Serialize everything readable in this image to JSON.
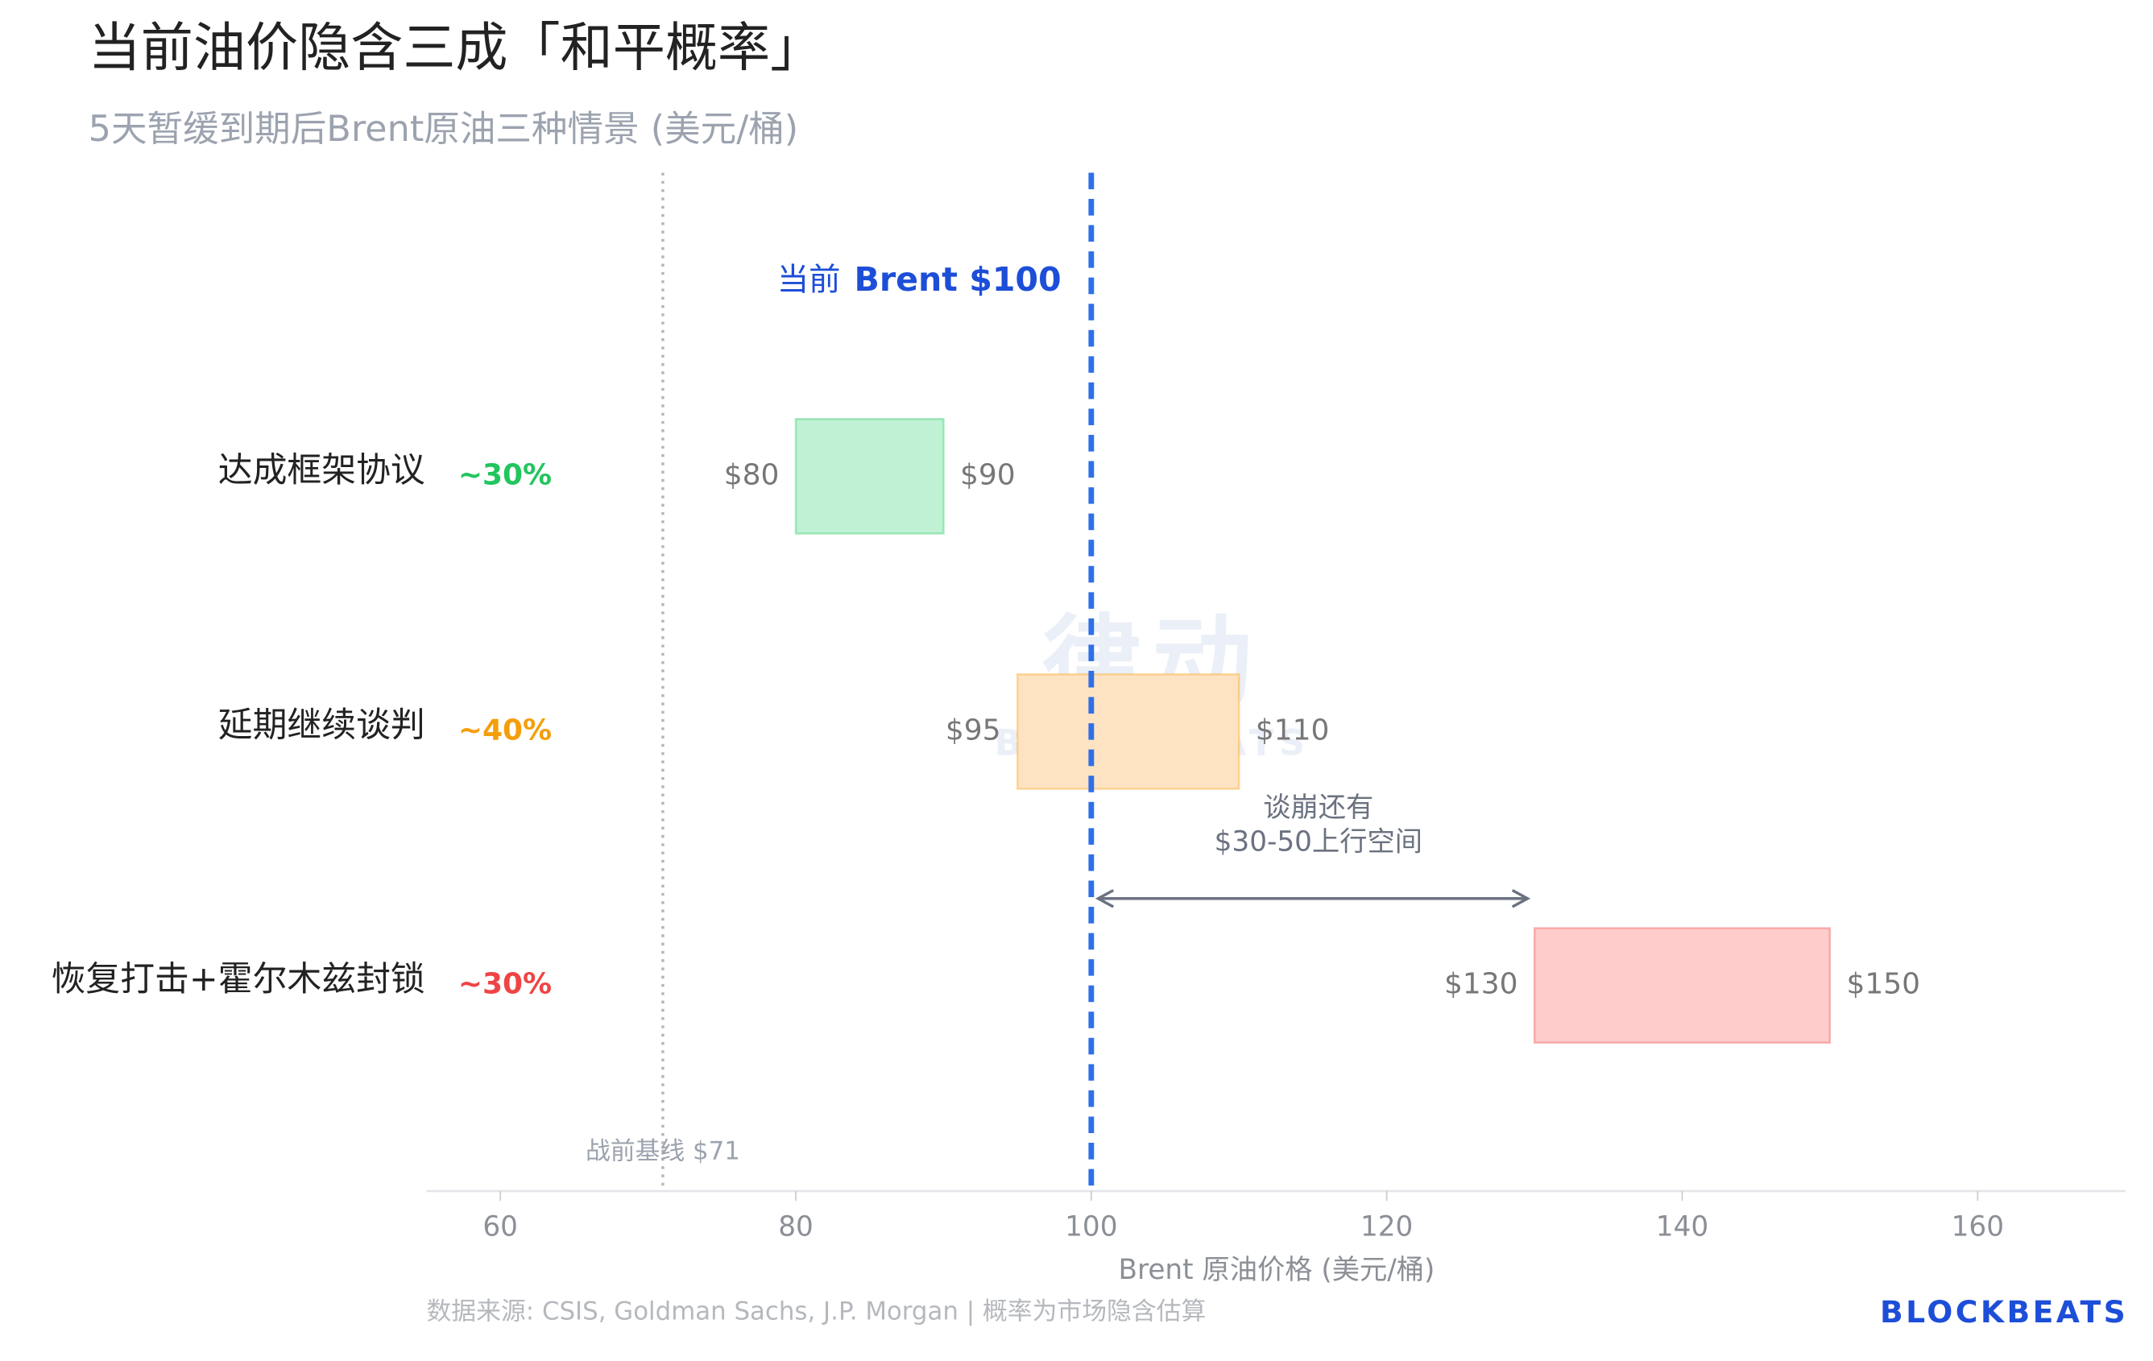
{
  "chart_data": {
    "type": "range_bar",
    "title": "当前油价隐含三成「和平概率」",
    "subtitle": "5天暂缓到期后Brent原油三种情景 (美元/桶)",
    "x_label": "Brent 原油价格 (美元/桶)",
    "categories": [
      "达成框架协议",
      "延期继续谈判",
      "恢复打击+霍尔木兹封锁"
    ],
    "probabilities": [
      "~30%",
      "~40%",
      "~30%"
    ],
    "probability_colors": [
      "#22c55e",
      "#f59e0b",
      "#ef4444"
    ],
    "low": [
      80,
      95,
      130
    ],
    "high": [
      90,
      110,
      150
    ],
    "low_labels": [
      "$80",
      "$95",
      "$130"
    ],
    "high_labels": [
      "$90",
      "$110",
      "$150"
    ],
    "colors": [
      "#c1f1d4",
      "#fde3c2",
      "#ffcccc"
    ],
    "xlim": [
      55,
      170
    ],
    "xticks": [
      60,
      80,
      100,
      120,
      140,
      160
    ],
    "current": {
      "value": 100,
      "prefix": "当前",
      "label": "Brent $100",
      "color": "#2f6fe8"
    },
    "baseline": {
      "value": 71,
      "label": "战前基线 $71"
    },
    "annotation": {
      "lines": [
        "谈崩还有",
        "$30-50上行空间"
      ],
      "x_start": 100,
      "x_end": 130
    },
    "watermark": [
      "律动",
      "BLOCKBEATS"
    ],
    "source": "数据来源: CSIS, Goldman Sachs, J.P. Morgan | 概率为市场隐含估算",
    "brand": "BLOCKBEATS"
  }
}
